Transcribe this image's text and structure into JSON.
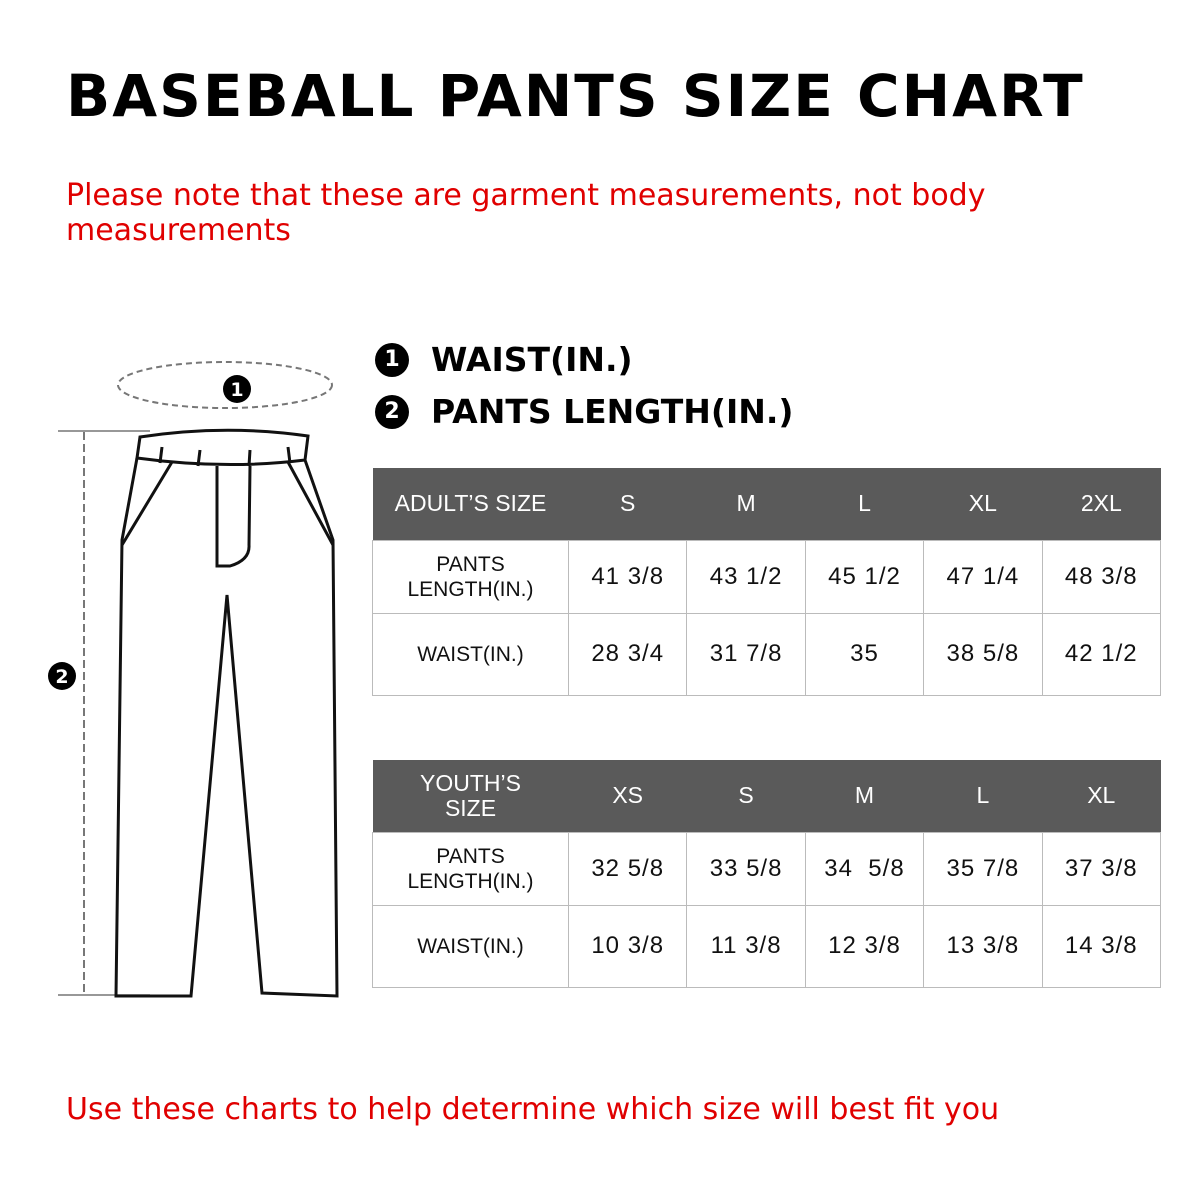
{
  "title": "BASEBALL PANTS SIZE CHART",
  "note": "Please note that these are garment measurements, not body measurements",
  "legend": [
    {
      "num": "1",
      "label": "WAIST(IN.)"
    },
    {
      "num": "2",
      "label": "PANTS LENGTH(IN.)"
    }
  ],
  "diagram": {
    "marker1": "1",
    "marker2": "2"
  },
  "adult": {
    "header": "ADULT’S SIZE",
    "sizes": [
      "S",
      "M",
      "L",
      "XL",
      "2XL"
    ],
    "rows": [
      {
        "label": "PANTS LENGTH(IN.)",
        "values": [
          "41 3/8",
          "43 1/2",
          "45 1/2",
          "47 1/4",
          "48 3/8"
        ]
      },
      {
        "label": "WAIST(IN.)",
        "values": [
          "28 3/4",
          "31 7/8",
          "35",
          "38 5/8",
          "42 1/2"
        ]
      }
    ]
  },
  "youth": {
    "header": "YOUTH’S SIZE",
    "sizes": [
      "XS",
      "S",
      "M",
      "L",
      "XL"
    ],
    "rows": [
      {
        "label": "PANTS LENGTH(IN.)",
        "values": [
          "32 5/8",
          "33 5/8",
          "34  5/8",
          "35 7/8",
          "37 3/8"
        ]
      },
      {
        "label": "WAIST(IN.)",
        "values": [
          "10 3/8",
          "11 3/8",
          "12 3/8",
          "13 3/8",
          "14 3/8"
        ]
      }
    ]
  },
  "footer": "Use these charts to help determine which size will best fit you",
  "colors": {
    "header_bg": "#5a5a5a",
    "note_red": "#e00000"
  }
}
